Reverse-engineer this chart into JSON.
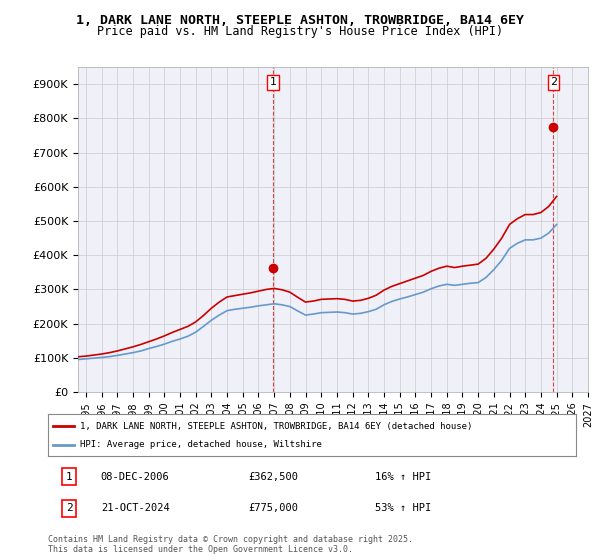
{
  "title": "1, DARK LANE NORTH, STEEPLE ASHTON, TROWBRIDGE, BA14 6EY",
  "subtitle": "Price paid vs. HM Land Registry's House Price Index (HPI)",
  "bg_color": "#ffffff",
  "grid_color": "#cccccc",
  "plot_bg": "#f0f0f8",
  "red_color": "#cc0000",
  "blue_color": "#6699cc",
  "marker1_date": 2006.92,
  "marker1_value": 362500,
  "marker2_date": 2024.8,
  "marker2_value": 775000,
  "legend_line1": "1, DARK LANE NORTH, STEEPLE ASHTON, TROWBRIDGE, BA14 6EY (detached house)",
  "legend_line2": "HPI: Average price, detached house, Wiltshire",
  "annotation1_label": "1",
  "annotation1_date": "08-DEC-2006",
  "annotation1_price": "£362,500",
  "annotation1_hpi": "16% ↑ HPI",
  "annotation2_label": "2",
  "annotation2_date": "21-OCT-2024",
  "annotation2_price": "£775,000",
  "annotation2_hpi": "53% ↑ HPI",
  "footer": "Contains HM Land Registry data © Crown copyright and database right 2025.\nThis data is licensed under the Open Government Licence v3.0.",
  "ylim": [
    0,
    950000
  ],
  "xlim_start": 1994.5,
  "xlim_end": 2027.0,
  "yticks": [
    0,
    100000,
    200000,
    300000,
    400000,
    500000,
    600000,
    700000,
    800000,
    900000
  ],
  "ytick_labels": [
    "£0",
    "£100K",
    "£200K",
    "£300K",
    "£400K",
    "£500K",
    "£600K",
    "£700K",
    "£800K",
    "£900K"
  ],
  "xticks": [
    1995,
    1996,
    1997,
    1998,
    1999,
    2000,
    2001,
    2002,
    2003,
    2004,
    2005,
    2006,
    2007,
    2008,
    2009,
    2010,
    2011,
    2012,
    2013,
    2014,
    2015,
    2016,
    2017,
    2018,
    2019,
    2020,
    2021,
    2022,
    2023,
    2024,
    2025,
    2026,
    2027
  ],
  "hpi_years": [
    1994.5,
    1995.0,
    1995.5,
    1996.0,
    1996.5,
    1997.0,
    1997.5,
    1998.0,
    1998.5,
    1999.0,
    1999.5,
    2000.0,
    2000.5,
    2001.0,
    2001.5,
    2002.0,
    2002.5,
    2003.0,
    2003.5,
    2004.0,
    2004.5,
    2005.0,
    2005.5,
    2006.0,
    2006.5,
    2007.0,
    2007.5,
    2008.0,
    2008.5,
    2009.0,
    2009.5,
    2010.0,
    2010.5,
    2011.0,
    2011.5,
    2012.0,
    2012.5,
    2013.0,
    2013.5,
    2014.0,
    2014.5,
    2015.0,
    2015.5,
    2016.0,
    2016.5,
    2017.0,
    2017.5,
    2018.0,
    2018.5,
    2019.0,
    2019.5,
    2020.0,
    2020.5,
    2021.0,
    2021.5,
    2022.0,
    2022.5,
    2023.0,
    2023.5,
    2024.0,
    2024.5,
    2025.0
  ],
  "hpi_values": [
    95000,
    97000,
    99000,
    101000,
    103500,
    107000,
    111000,
    115000,
    120000,
    127000,
    133000,
    140000,
    148000,
    155000,
    163000,
    175000,
    192000,
    210000,
    225000,
    238000,
    242000,
    245000,
    248000,
    252000,
    255000,
    258000,
    255000,
    250000,
    237000,
    225000,
    228000,
    232000,
    233000,
    234000,
    232000,
    228000,
    230000,
    235000,
    242000,
    255000,
    265000,
    272000,
    278000,
    285000,
    292000,
    302000,
    310000,
    315000,
    312000,
    315000,
    318000,
    320000,
    335000,
    358000,
    385000,
    420000,
    435000,
    445000,
    445000,
    450000,
    465000,
    490000
  ],
  "red_years": [
    1994.5,
    1995.0,
    1995.5,
    1996.0,
    1996.5,
    1997.0,
    1997.5,
    1998.0,
    1998.5,
    1999.0,
    1999.5,
    2000.0,
    2000.5,
    2001.0,
    2001.5,
    2002.0,
    2002.5,
    2003.0,
    2003.5,
    2004.0,
    2004.5,
    2005.0,
    2005.5,
    2006.0,
    2006.5,
    2007.0,
    2007.5,
    2008.0,
    2008.5,
    2009.0,
    2009.5,
    2010.0,
    2010.5,
    2011.0,
    2011.5,
    2012.0,
    2012.5,
    2013.0,
    2013.5,
    2014.0,
    2014.5,
    2015.0,
    2015.5,
    2016.0,
    2016.5,
    2017.0,
    2017.5,
    2018.0,
    2018.5,
    2019.0,
    2019.5,
    2020.0,
    2020.5,
    2021.0,
    2021.5,
    2022.0,
    2022.5,
    2023.0,
    2023.5,
    2024.0,
    2024.5,
    2025.0
  ],
  "red_values": [
    103000,
    105000,
    108000,
    111000,
    115000,
    120000,
    126000,
    132000,
    139000,
    147000,
    155000,
    164000,
    174000,
    183000,
    192000,
    205000,
    224000,
    245000,
    263000,
    278000,
    282000,
    286000,
    290000,
    295000,
    300000,
    303000,
    299000,
    292000,
    277000,
    263000,
    266000,
    271000,
    272000,
    273000,
    271000,
    266000,
    268000,
    274000,
    283000,
    298000,
    309000,
    317000,
    325000,
    333000,
    341000,
    353000,
    362000,
    368000,
    364000,
    368000,
    371000,
    374000,
    391000,
    418000,
    450000,
    490000,
    507000,
    519000,
    519000,
    525000,
    543000,
    572000
  ]
}
